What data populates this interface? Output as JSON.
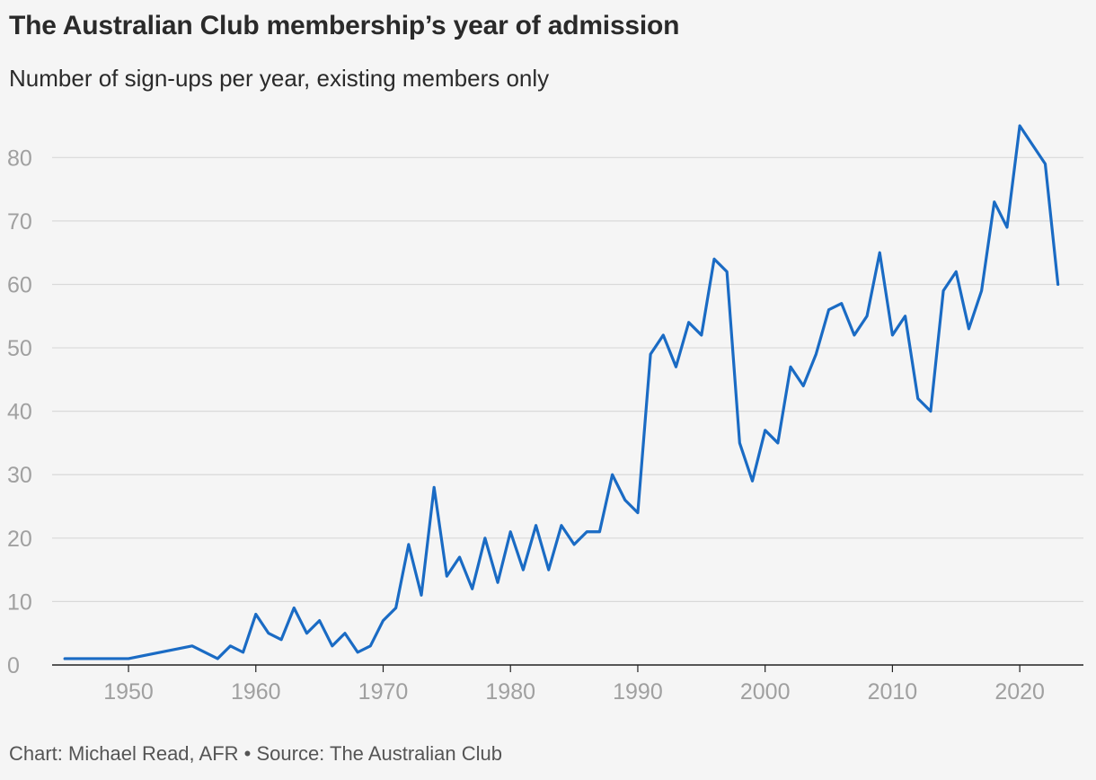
{
  "title": "The Australian Club membership’s year of admission",
  "subtitle": "Number of sign-ups per year, existing members only",
  "source": "Chart: Michael Read, AFR • Source: The Australian Club",
  "colors": {
    "line": "#1a6bc4",
    "grid": "#d9d9d9",
    "axis": "#222222",
    "tick_label": "#a0a0a0",
    "background": "#f5f5f5"
  },
  "chart_data": {
    "type": "line",
    "title": "The Australian Club membership’s year of admission",
    "subtitle": "Number of sign-ups per year, existing members only",
    "xlabel": "",
    "ylabel": "",
    "xlim": [
      1944,
      2025
    ],
    "ylim": [
      0,
      85
    ],
    "x_ticks": [
      1950,
      1960,
      1970,
      1980,
      1990,
      2000,
      2010,
      2020
    ],
    "y_ticks": [
      0,
      10,
      20,
      30,
      40,
      50,
      60,
      70,
      80
    ],
    "grid": "horizontal",
    "legend": "none",
    "series": [
      {
        "points": [
          [
            1945,
            1
          ],
          [
            1950,
            1
          ],
          [
            1955,
            3
          ],
          [
            1957,
            1
          ],
          [
            1958,
            3
          ],
          [
            1959,
            2
          ],
          [
            1960,
            8
          ],
          [
            1961,
            5
          ],
          [
            1962,
            4
          ],
          [
            1963,
            9
          ],
          [
            1964,
            5
          ],
          [
            1965,
            7
          ],
          [
            1966,
            3
          ],
          [
            1967,
            5
          ],
          [
            1968,
            2
          ],
          [
            1969,
            3
          ],
          [
            1970,
            7
          ],
          [
            1971,
            9
          ],
          [
            1972,
            19
          ],
          [
            1973,
            11
          ],
          [
            1974,
            28
          ],
          [
            1975,
            14
          ],
          [
            1976,
            17
          ],
          [
            1977,
            12
          ],
          [
            1978,
            20
          ],
          [
            1979,
            13
          ],
          [
            1980,
            21
          ],
          [
            1981,
            15
          ],
          [
            1982,
            22
          ],
          [
            1983,
            15
          ],
          [
            1984,
            22
          ],
          [
            1985,
            19
          ],
          [
            1986,
            21
          ],
          [
            1987,
            21
          ],
          [
            1988,
            30
          ],
          [
            1989,
            26
          ],
          [
            1990,
            24
          ],
          [
            1991,
            49
          ],
          [
            1992,
            52
          ],
          [
            1993,
            47
          ],
          [
            1994,
            54
          ],
          [
            1995,
            52
          ],
          [
            1996,
            64
          ],
          [
            1997,
            62
          ],
          [
            1998,
            35
          ],
          [
            1999,
            29
          ],
          [
            2000,
            37
          ],
          [
            2001,
            35
          ],
          [
            2002,
            47
          ],
          [
            2003,
            44
          ],
          [
            2004,
            49
          ],
          [
            2005,
            56
          ],
          [
            2006,
            57
          ],
          [
            2007,
            52
          ],
          [
            2008,
            55
          ],
          [
            2009,
            65
          ],
          [
            2010,
            52
          ],
          [
            2011,
            55
          ],
          [
            2012,
            42
          ],
          [
            2013,
            40
          ],
          [
            2014,
            59
          ],
          [
            2015,
            62
          ],
          [
            2016,
            53
          ],
          [
            2017,
            59
          ],
          [
            2018,
            73
          ],
          [
            2019,
            69
          ],
          [
            2020,
            85
          ],
          [
            2022,
            79
          ],
          [
            2023,
            60
          ]
        ]
      }
    ]
  }
}
